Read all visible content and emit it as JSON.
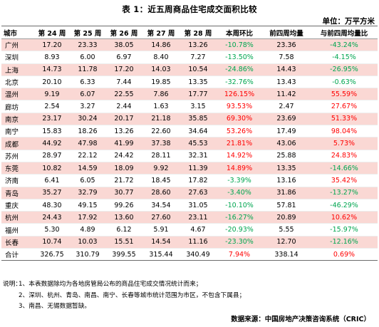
{
  "title": "表 1：近五周商品住宅成交面积比较",
  "unit": "单位：万平方米",
  "headers": [
    "城市",
    "第 24 周",
    "第 25 周",
    "第 26 周",
    "第 27 周",
    "第 28 周",
    "本周环比",
    "前四周均量",
    "与前四周均量比"
  ],
  "rows": [
    {
      "city": "广州",
      "w24": "17.20",
      "w25": "23.33",
      "w26": "38.05",
      "w27": "14.86",
      "w28": "13.26",
      "wow": "-10.78%",
      "avg4": "23.36",
      "vsavg": "-43.24%"
    },
    {
      "city": "深圳",
      "w24": "8.93",
      "w25": "6.00",
      "w26": "6.97",
      "w27": "8.40",
      "w28": "7.27",
      "wow": "-13.50%",
      "avg4": "7.58",
      "vsavg": "-4.15%"
    },
    {
      "city": "上海",
      "w24": "14.73",
      "w25": "11.78",
      "w26": "17.20",
      "w27": "14.03",
      "w28": "10.54",
      "wow": "-24.86%",
      "avg4": "14.43",
      "vsavg": "-26.95%"
    },
    {
      "city": "北京",
      "w24": "20.10",
      "w25": "6.33",
      "w26": "7.44",
      "w27": "19.85",
      "w28": "13.35",
      "wow": "-32.76%",
      "avg4": "13.43",
      "vsavg": "-0.63%"
    },
    {
      "city": "温州",
      "w24": "9.19",
      "w25": "6.07",
      "w26": "22.55",
      "w27": "7.86",
      "w28": "17.77",
      "wow": "126.15%",
      "avg4": "11.42",
      "vsavg": "55.59%"
    },
    {
      "city": "廊坊",
      "w24": "2.54",
      "w25": "3.27",
      "w26": "2.44",
      "w27": "1.63",
      "w28": "3.15",
      "wow": "93.53%",
      "avg4": "2.47",
      "vsavg": "27.67%"
    },
    {
      "city": "南京",
      "w24": "23.17",
      "w25": "30.24",
      "w26": "20.17",
      "w27": "21.18",
      "w28": "35.85",
      "wow": "69.30%",
      "avg4": "23.69",
      "vsavg": "51.33%"
    },
    {
      "city": "南宁",
      "w24": "15.83",
      "w25": "18.26",
      "w26": "13.26",
      "w27": "22.60",
      "w28": "34.64",
      "wow": "53.26%",
      "avg4": "17.49",
      "vsavg": "98.04%"
    },
    {
      "city": "成都",
      "w24": "44.92",
      "w25": "47.98",
      "w26": "41.99",
      "w27": "37.38",
      "w28": "45.53",
      "wow": "21.81%",
      "avg4": "43.06",
      "vsavg": "5.73%"
    },
    {
      "city": "苏州",
      "w24": "28.97",
      "w25": "22.12",
      "w26": "24.42",
      "w27": "28.11",
      "w28": "32.31",
      "wow": "14.92%",
      "avg4": "25.88",
      "vsavg": "24.83%"
    },
    {
      "city": "东莞",
      "w24": "10.82",
      "w25": "14.59",
      "w26": "18.09",
      "w27": "9.92",
      "w28": "11.39",
      "wow": "14.89%",
      "avg4": "13.35",
      "vsavg": "-14.66%"
    },
    {
      "city": "济南",
      "w24": "6.41",
      "w25": "6.05",
      "w26": "21.72",
      "w27": "18.45",
      "w28": "17.82",
      "wow": "-3.39%",
      "avg4": "13.16",
      "vsavg": "35.42%"
    },
    {
      "city": "青岛",
      "w24": "35.27",
      "w25": "32.79",
      "w26": "30.77",
      "w27": "28.60",
      "w28": "27.63",
      "wow": "-3.40%",
      "avg4": "31.86",
      "vsavg": "-13.27%"
    },
    {
      "city": "重庆",
      "w24": "48.30",
      "w25": "49.15",
      "w26": "99.26",
      "w27": "34.54",
      "w28": "31.05",
      "wow": "-10.10%",
      "avg4": "57.81",
      "vsavg": "-46.29%"
    },
    {
      "city": "杭州",
      "w24": "24.43",
      "w25": "17.92",
      "w26": "13.60",
      "w27": "27.60",
      "w28": "23.11",
      "wow": "-16.27%",
      "avg4": "20.89",
      "vsavg": "10.62%"
    },
    {
      "city": "福州",
      "w24": "5.30",
      "w25": "4.89",
      "w26": "6.12",
      "w27": "5.91",
      "w28": "4.67",
      "wow": "-20.93%",
      "avg4": "5.55",
      "vsavg": "-15.97%"
    },
    {
      "city": "长春",
      "w24": "10.74",
      "w25": "10.03",
      "w26": "15.51",
      "w27": "14.54",
      "w28": "11.16",
      "wow": "-23.30%",
      "avg4": "12.70",
      "vsavg": "-12.16%"
    }
  ],
  "total": {
    "city": "合计",
    "w24": "326.75",
    "w25": "310.79",
    "w26": "399.55",
    "w27": "315.44",
    "w28": "340.49",
    "wow": "7.94%",
    "avg4": "338.14",
    "vsavg": "0.69%"
  },
  "notes": {
    "label": "说明：",
    "n1": "1、本表数据除均为各地房管局公布的商品住宅成交情况统计而来；",
    "n2": "2、深圳、杭州、青岛、南昌、南宁、长春等城市统计范围为市区，不包含下属县；",
    "n3": "3、南昌、无锡数据暂缺。"
  },
  "source": "数据来源：中国房地产决策咨询系统（CRIC）",
  "colors": {
    "negative": "#00a650",
    "positive": "#ff0000",
    "highlight": "#fad8d4",
    "rule": "#6b6b6b"
  }
}
